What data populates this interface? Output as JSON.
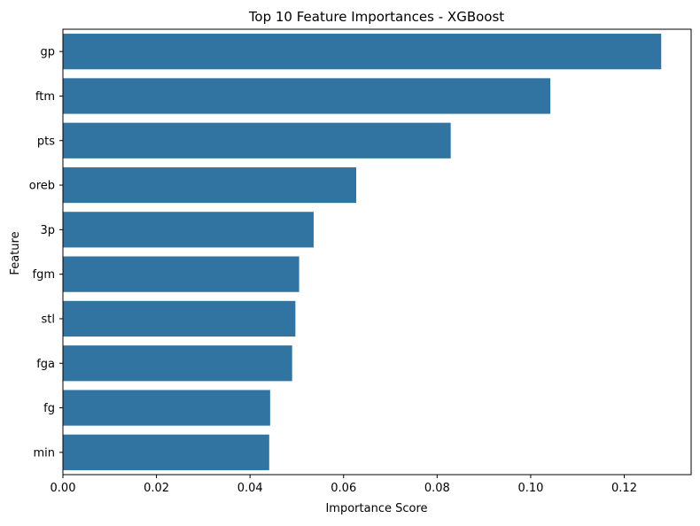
{
  "chart_data": {
    "type": "bar",
    "orientation": "horizontal",
    "title": "Top 10 Feature Importances - XGBoost",
    "xlabel": "Importance Score",
    "ylabel": "Feature",
    "categories": [
      "gp",
      "ftm",
      "pts",
      "oreb",
      "3p",
      "fgm",
      "stl",
      "fga",
      "fg",
      "min"
    ],
    "values": [
      0.1279,
      0.1042,
      0.0829,
      0.0627,
      0.0536,
      0.0505,
      0.0497,
      0.049,
      0.0443,
      0.0441
    ],
    "xlim": [
      0,
      0.1343
    ],
    "xticks": [
      "0.00",
      "0.02",
      "0.04",
      "0.06",
      "0.08",
      "0.10",
      "0.12"
    ],
    "grid": false,
    "colors": {
      "bar": "#3274a1",
      "axis": "#000000"
    }
  }
}
